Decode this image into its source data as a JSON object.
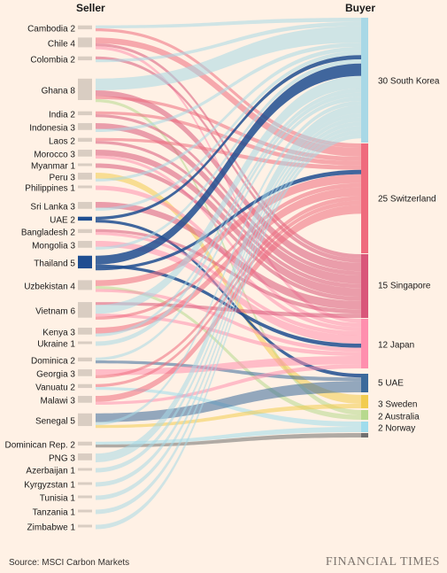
{
  "headers": {
    "seller": "Seller",
    "buyer": "Buyer"
  },
  "sellers": [
    {
      "label": "Cambodia 2",
      "value": 2
    },
    {
      "label": "Chile 4",
      "value": 4
    },
    {
      "label": "Colombia 2",
      "value": 2
    },
    {
      "label": "Ghana 8",
      "value": 8
    },
    {
      "label": "India 2",
      "value": 2
    },
    {
      "label": "Indonesia 3",
      "value": 3
    },
    {
      "label": "Laos 2",
      "value": 2
    },
    {
      "label": "Morocco 3",
      "value": 3
    },
    {
      "label": "Myanmar 1",
      "value": 1
    },
    {
      "label": "Peru 3",
      "value": 3
    },
    {
      "label": "Philippines 1",
      "value": 1
    },
    {
      "label": "Sri Lanka 3",
      "value": 3
    },
    {
      "label": "UAE 2",
      "value": 2
    },
    {
      "label": "Bangladesh 2",
      "value": 2
    },
    {
      "label": "Mongolia 3",
      "value": 3
    },
    {
      "label": "Thailand 5",
      "value": 5
    },
    {
      "label": "Uzbekistan 4",
      "value": 4
    },
    {
      "label": "Vietnam 6",
      "value": 6
    },
    {
      "label": "Kenya 3",
      "value": 3
    },
    {
      "label": "Ukraine 1",
      "value": 1
    },
    {
      "label": "Dominica 2",
      "value": 2
    },
    {
      "label": "Georgia 3",
      "value": 3
    },
    {
      "label": "Vanuatu 2",
      "value": 2
    },
    {
      "label": "Malawi 3",
      "value": 3
    },
    {
      "label": "Senegal 5",
      "value": 5
    },
    {
      "label": "Dominican Rep. 2",
      "value": 2
    },
    {
      "label": "PNG 3",
      "value": 3
    },
    {
      "label": "Azerbaijan 1",
      "value": 1
    },
    {
      "label": "Kyrgyzstan 1",
      "value": 1
    },
    {
      "label": "Tunisia 1",
      "value": 1
    },
    {
      "label": "Tanzania 1",
      "value": 1
    },
    {
      "label": "Zimbabwe 1",
      "value": 1
    }
  ],
  "buyers": [
    {
      "label": "30 South Korea",
      "value": 30,
      "color": "#a8d8e6"
    },
    {
      "label": "25 Switzerland",
      "value": 25,
      "color": "#ef6b7d"
    },
    {
      "label": "15 Singapore",
      "value": 15,
      "color": "#d9577a"
    },
    {
      "label": "12 Japan",
      "value": 12,
      "color": "#ff8fae"
    },
    {
      "label": "5 UAE",
      "value": 5,
      "color": "#3b6a9b"
    },
    {
      "label": "3 Sweden",
      "value": 3,
      "color": "#f2cc4f"
    },
    {
      "label": "2 Australia",
      "value": 2,
      "color": "#b7d98e"
    },
    {
      "label": "2 Norway",
      "value": 2,
      "color": "#9fdcec"
    },
    {
      "label": "",
      "value": 1,
      "color": "#707070"
    }
  ],
  "seller_node_color": "#d9cdc2",
  "highlight_node_color": "#1f4e91",
  "flows_note": "flows are drawn from sellers to buyers",
  "source": "Source: MSCI Carbon Markets",
  "brand": "FINANCIAL TIMES"
}
